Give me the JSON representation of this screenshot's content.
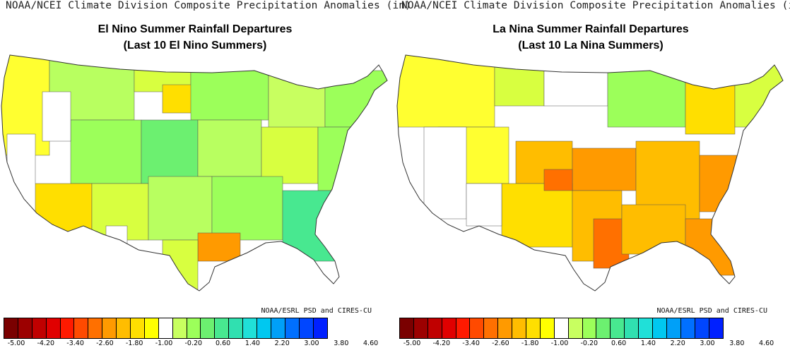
{
  "header": "NOAA/NCEI Climate Division Composite Precipitation Anomalies (in)",
  "credit": "NOAA/ESRL PSD and CIRES-CU",
  "panels": [
    {
      "title": "El Nino Summer Rainfall Departures",
      "subtitle": "(Last 10 El Nino Summers)"
    },
    {
      "title": "La Nina Summer Rainfall Departures",
      "subtitle": "(Last 10 La Nina Summers)"
    }
  ],
  "colorbar": {
    "colors": [
      "#7a0000",
      "#9c0000",
      "#c00000",
      "#e00000",
      "#ff1a00",
      "#ff4a00",
      "#ff7000",
      "#ff9a00",
      "#ffbd00",
      "#ffdf00",
      "#ffff00",
      "#ffffff",
      "#c8ff60",
      "#9cff5a",
      "#6cf070",
      "#48e890",
      "#30e0b0",
      "#20e0d8",
      "#00c8f0",
      "#00a0f8",
      "#0070ff",
      "#0046ff",
      "#0020ff"
    ],
    "tick_labels": [
      "-5.00",
      "-4.20",
      "-3.40",
      "-2.60",
      "-1.80",
      "-1.00",
      "-0.20",
      "0.60",
      "1.40",
      "2.20",
      "3.00",
      "3.80",
      "4.60"
    ]
  }
}
